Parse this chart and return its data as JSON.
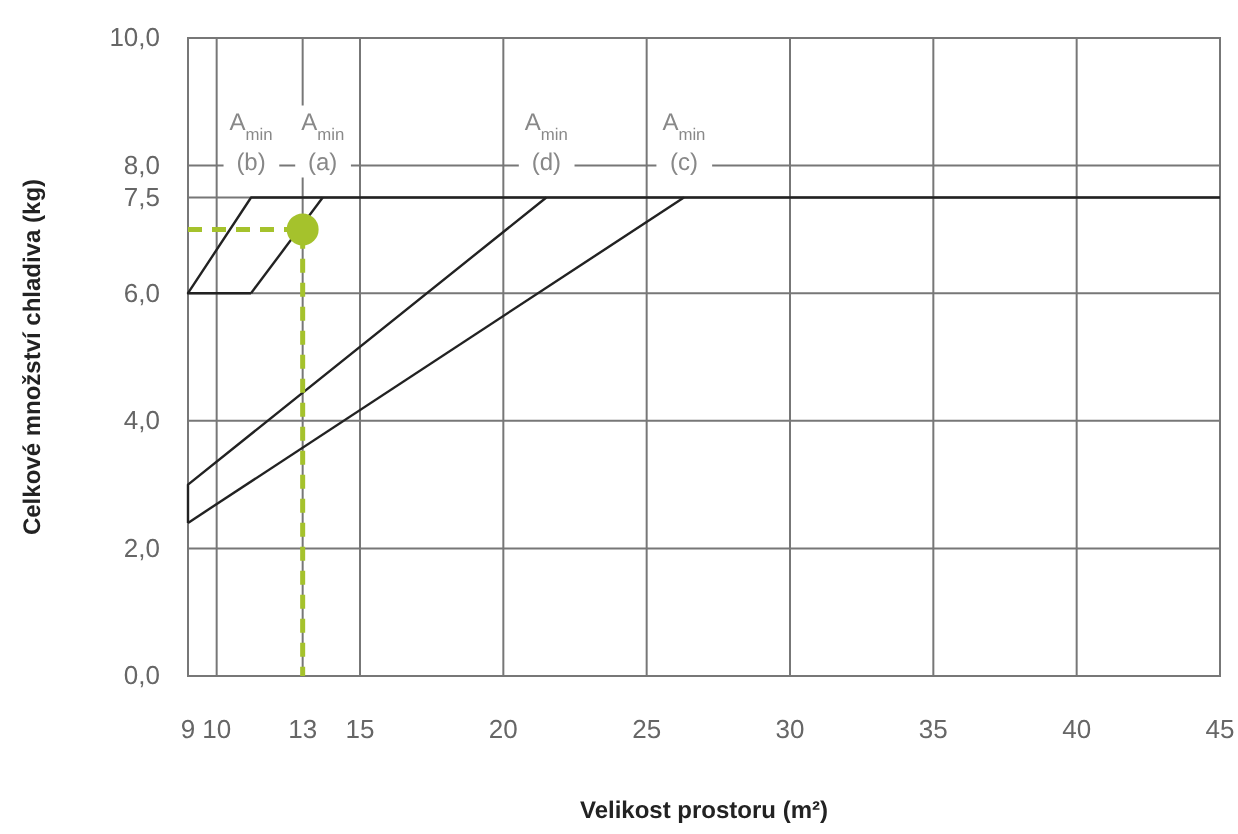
{
  "chart_data": {
    "type": "line",
    "xlabel": "Velikost prostoru (m²)",
    "ylabel": "Celkové množství chladiva (kg)",
    "xlim": [
      9,
      45
    ],
    "ylim": [
      0,
      10
    ],
    "xticks": [
      9,
      10,
      13,
      15,
      20,
      25,
      30,
      35,
      40,
      45
    ],
    "yticks": [
      {
        "value": 0,
        "label": "0,0"
      },
      {
        "value": 2,
        "label": "2,0"
      },
      {
        "value": 4,
        "label": "4,0"
      },
      {
        "value": 6,
        "label": "6,0"
      },
      {
        "value": 7.5,
        "label": "7,5"
      },
      {
        "value": 8,
        "label": "8,0"
      },
      {
        "value": 10,
        "label": "10,0"
      }
    ],
    "grid": true,
    "series": [
      {
        "color": "#222222",
        "x": [
          11.2,
          9,
          11.2,
          45
        ],
        "values": [
          6,
          6,
          7.5,
          7.5
        ]
      },
      {
        "color": "#222222",
        "x": [
          11.2,
          13.7
        ],
        "values": [
          6,
          7.5
        ]
      },
      {
        "color": "#222222",
        "x": [
          9,
          9,
          21.5
        ],
        "values": [
          2.4,
          3,
          7.5
        ]
      },
      {
        "color": "#222222",
        "x": [
          9,
          26.3
        ],
        "values": [
          2.4,
          7.5
        ]
      },
      {
        "color": "#a5c22c",
        "line_style": "dashed",
        "x": [
          9,
          13,
          13
        ],
        "values": [
          7,
          7,
          0
        ]
      },
      {
        "type": "scatter",
        "marker": "circle",
        "color": "#a5c22c",
        "x": [
          13
        ],
        "values": [
          7
        ]
      }
    ],
    "annotations": [
      {
        "text": "A$_{min}$ (b)",
        "x": 11.2,
        "y": 7.5
      },
      {
        "text": "A$_{min}$ (a)",
        "x": 13.7,
        "y": 7.5
      },
      {
        "text": "A$_{min}$ (d)",
        "x": 21.5,
        "y": 7.5
      },
      {
        "text": "A$_{min}$ (c)",
        "x": 26.3,
        "y": 7.5
      }
    ]
  }
}
